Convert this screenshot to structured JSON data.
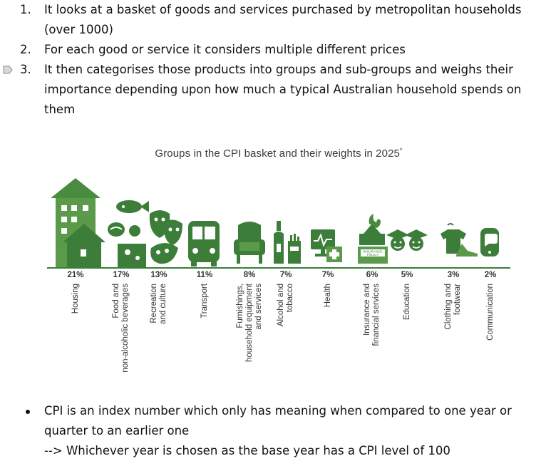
{
  "numbered_list": [
    {
      "num": "1.",
      "text": "It looks at a basket of goods and services purchased by metropolitan households (over 1000)"
    },
    {
      "num": "2.",
      "text": "For each good or service it considers multiple different prices"
    },
    {
      "num": "3.",
      "text": "It then categorises those products into groups and sub-groups and weighs their importance depending upon how much a typical Australian household spends on them"
    }
  ],
  "chart_data": {
    "type": "table",
    "title": "Groups in the CPI basket and their weights in 2025",
    "title_mark": "*",
    "accent_color": "#4a8c3f",
    "categories": [
      {
        "label": [
          "Housing"
        ],
        "weight": "21%",
        "icon": "house-tower-icon"
      },
      {
        "label": [
          "Food and",
          "non-alcoholic beverages"
        ],
        "weight": "17%",
        "icon": "food-icon"
      },
      {
        "label": [
          "Recreation",
          "and culture"
        ],
        "weight": "13%",
        "icon": "theatre-masks-icon"
      },
      {
        "label": [
          "Transport"
        ],
        "weight": "11%",
        "icon": "bus-icon"
      },
      {
        "label": [
          "Furnishings,",
          "household equipment",
          "and services"
        ],
        "weight": "8%",
        "icon": "armchair-icon"
      },
      {
        "label": [
          "Alcohol and",
          "tobacco"
        ],
        "weight": "7%",
        "icon": "bottle-cigarettes-icon"
      },
      {
        "label": [
          "Health"
        ],
        "weight": "7%",
        "icon": "health-monitor-icon"
      },
      {
        "label": [
          "Insurance and",
          "financial services"
        ],
        "weight": "6%",
        "icon": "insurance-policy-icon"
      },
      {
        "label": [
          "Education"
        ],
        "weight": "5%",
        "icon": "graduates-icon"
      },
      {
        "label": [
          "Clothing and",
          "footwear"
        ],
        "weight": "3%",
        "icon": "shirt-shoe-icon"
      },
      {
        "label": [
          "Communication"
        ],
        "weight": "2%",
        "icon": "phone-chat-icon"
      }
    ],
    "policy_text": "INSURANCE POLICY"
  },
  "bullets": [
    {
      "text": "CPI is an index number which only has meaning when compared to one year or quarter to an earlier one"
    },
    {
      "text": "--> Whichever year is chosen as the base year has a CPI level of 100"
    }
  ]
}
